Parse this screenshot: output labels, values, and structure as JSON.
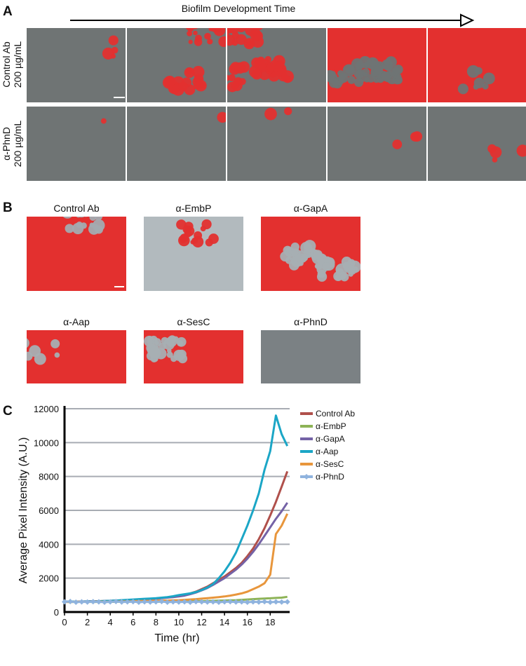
{
  "panel_a": {
    "label": "A",
    "arrow_label": "Biofilm Development Time",
    "rows": [
      {
        "antibody": "Control Ab",
        "concentration": "200 µg/mL"
      },
      {
        "antibody": "α-PhnD",
        "concentration": "200 µg/mL"
      }
    ]
  },
  "panel_b": {
    "label": "B",
    "images": [
      "Control Ab",
      "α-EmbP",
      "α-GapA",
      "α-Aap",
      "α-SesC",
      "α-PhnD"
    ]
  },
  "panel_c": {
    "label": "C"
  },
  "chart_data": {
    "type": "line",
    "x_label": "Time (hr)",
    "y_label": "Average Pixel Intensity (A.U.)",
    "xlim": [
      0,
      19.7
    ],
    "ylim": [
      0,
      12000
    ],
    "xticks": [
      0,
      2,
      4,
      6,
      8,
      10,
      12,
      14,
      16,
      18
    ],
    "yticks": [
      0,
      2000,
      4000,
      6000,
      8000,
      10000,
      12000
    ],
    "grid": true,
    "legend": "upper right",
    "x": [
      0,
      0.5,
      1,
      1.5,
      2,
      2.5,
      3,
      3.5,
      4,
      4.5,
      5,
      5.5,
      6,
      6.5,
      7,
      7.5,
      8,
      8.5,
      9,
      9.5,
      10,
      10.5,
      11,
      11.5,
      12,
      12.5,
      13,
      13.5,
      14,
      14.5,
      15,
      15.5,
      16,
      16.5,
      17,
      17.5,
      18,
      18.5,
      19,
      19.5
    ],
    "series": [
      {
        "name": "Control Ab",
        "color": "#b0504b",
        "values": [
          600,
          610,
          600,
          620,
          610,
          630,
          640,
          650,
          660,
          670,
          690,
          700,
          720,
          740,
          760,
          780,
          800,
          830,
          860,
          900,
          950,
          1000,
          1100,
          1200,
          1350,
          1500,
          1700,
          1900,
          2100,
          2350,
          2600,
          2900,
          3300,
          3750,
          4300,
          4950,
          5700,
          6500,
          7400,
          8300
        ]
      },
      {
        "name": "α-EmbP",
        "color": "#8db356",
        "values": [
          600,
          590,
          600,
          610,
          600,
          590,
          600,
          610,
          600,
          600,
          610,
          600,
          620,
          600,
          610,
          620,
          600,
          610,
          620,
          630,
          620,
          630,
          640,
          650,
          640,
          650,
          660,
          670,
          680,
          690,
          700,
          720,
          740,
          760,
          780,
          800,
          810,
          830,
          850,
          900
        ]
      },
      {
        "name": "α-GapA",
        "color": "#7462a6",
        "values": [
          620,
          610,
          600,
          620,
          630,
          640,
          620,
          650,
          660,
          670,
          680,
          690,
          700,
          720,
          740,
          760,
          790,
          820,
          850,
          880,
          920,
          970,
          1050,
          1150,
          1280,
          1420,
          1600,
          1800,
          2000,
          2250,
          2500,
          2800,
          3150,
          3550,
          4000,
          4500,
          5000,
          5500,
          5950,
          6450
        ]
      },
      {
        "name": "α-Aap",
        "color": "#1ba6c6",
        "values": [
          600,
          620,
          610,
          600,
          630,
          620,
          640,
          650,
          660,
          680,
          700,
          720,
          740,
          760,
          780,
          800,
          820,
          850,
          880,
          930,
          1000,
          1050,
          1100,
          1180,
          1300,
          1450,
          1650,
          2000,
          2400,
          2900,
          3500,
          4300,
          5100,
          6000,
          7000,
          8400,
          9500,
          11600,
          10500,
          9800
        ]
      },
      {
        "name": "α-SesC",
        "color": "#e8963c",
        "values": [
          600,
          590,
          610,
          600,
          600,
          610,
          620,
          600,
          610,
          620,
          630,
          620,
          640,
          650,
          650,
          660,
          670,
          680,
          680,
          690,
          700,
          720,
          740,
          760,
          790,
          820,
          850,
          880,
          920,
          970,
          1030,
          1100,
          1200,
          1350,
          1500,
          1700,
          2200,
          4600,
          5100,
          5800
        ]
      },
      {
        "name": "α-PhnD",
        "color": "#8fb3de",
        "marker": "diamond",
        "values": [
          600,
          620,
          580,
          600,
          590,
          610,
          600,
          580,
          600,
          620,
          590,
          600,
          610,
          580,
          600,
          590,
          600,
          620,
          580,
          600,
          590,
          600,
          580,
          610,
          600,
          590,
          600,
          580,
          600,
          610,
          590,
          600,
          580,
          600,
          590,
          610,
          580,
          600,
          590,
          600
        ]
      }
    ]
  }
}
